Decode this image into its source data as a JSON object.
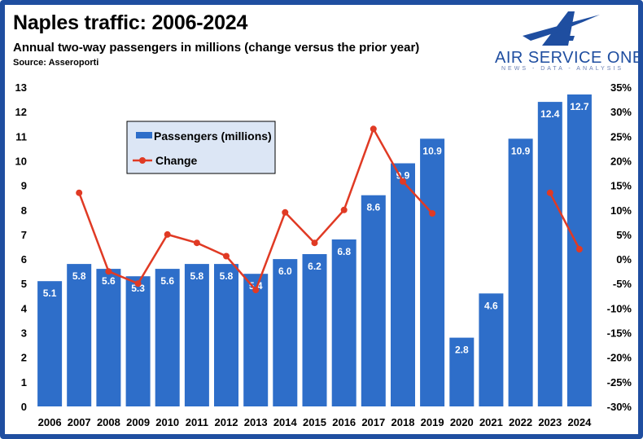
{
  "header": {
    "title": "Naples traffic: 2006-2024",
    "subtitle": "Annual two-way passengers in millions (change versus the prior year)",
    "source": "Source: Asseroporti"
  },
  "logo": {
    "name": "AIR SERVICE ONE",
    "tagline": "NEWS - DATA - ANALYSIS",
    "icon": "letter-a-aircraft-logo"
  },
  "colors": {
    "bar": "#2e6ec9",
    "line": "#e03a24",
    "frame": "#1f4ea0",
    "legend_bg": "#dce6f5"
  },
  "chart_data": {
    "type": "bar",
    "categories": [
      "2006",
      "2007",
      "2008",
      "2009",
      "2010",
      "2011",
      "2012",
      "2013",
      "2014",
      "2015",
      "2016",
      "2017",
      "2018",
      "2019",
      "2020",
      "2021",
      "2022",
      "2023",
      "2024"
    ],
    "series": [
      {
        "name": "Passengers (millions)",
        "type": "bar",
        "axis": "left",
        "values": [
          5.1,
          5.8,
          5.6,
          5.3,
          5.6,
          5.8,
          5.8,
          5.4,
          6.0,
          6.2,
          6.8,
          8.6,
          9.9,
          10.9,
          2.8,
          4.6,
          10.9,
          12.4,
          12.7
        ],
        "labels": [
          "5.1",
          "5.8",
          "5.6",
          "5.3",
          "5.6",
          "5.8",
          "5.8",
          "5.4",
          "6.0",
          "6.2",
          "6.8",
          "8.6",
          "9.9",
          "10.9",
          "2.8",
          "4.6",
          "10.9",
          "12.4",
          "12.7"
        ]
      },
      {
        "name": "Change",
        "type": "line",
        "axis": "right",
        "unit": "%",
        "values": [
          null,
          13.5,
          -2.5,
          -5.0,
          5.0,
          3.3,
          0.6,
          -6.3,
          9.5,
          3.3,
          10.0,
          26.5,
          15.8,
          9.3,
          null,
          null,
          null,
          13.5,
          2.0
        ]
      }
    ],
    "y_left": {
      "min": 0,
      "max": 13,
      "step": 1,
      "ticks": [
        "0",
        "1",
        "2",
        "3",
        "4",
        "5",
        "6",
        "7",
        "8",
        "9",
        "10",
        "11",
        "12",
        "13"
      ]
    },
    "y_right": {
      "min": -30,
      "max": 35,
      "step": 5,
      "ticks": [
        "-30%",
        "-25%",
        "-20%",
        "-15%",
        "-10%",
        "-5%",
        "0%",
        "5%",
        "10%",
        "15%",
        "20%",
        "25%",
        "30%",
        "35%"
      ]
    },
    "legend": {
      "placement": "top-left",
      "entries": [
        "Passengers (millions)",
        "Change"
      ]
    },
    "grid": false
  }
}
